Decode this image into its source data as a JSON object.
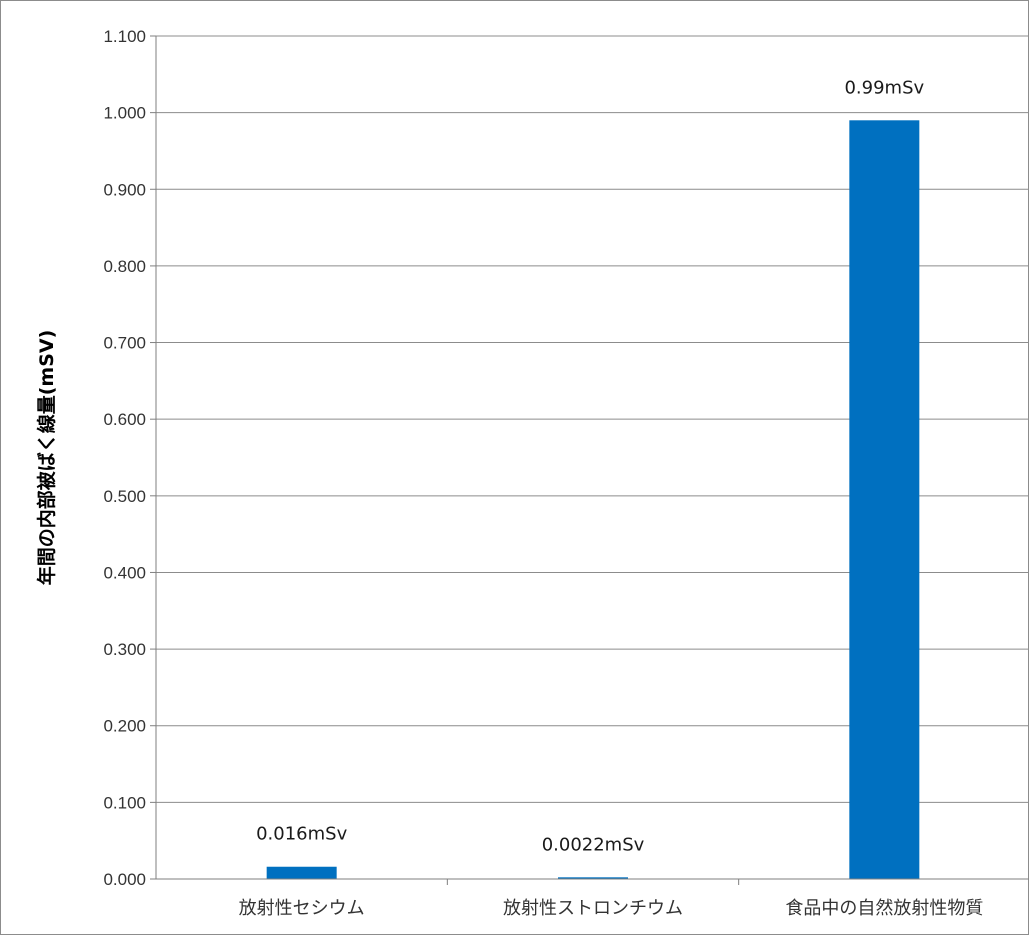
{
  "chart_data": {
    "type": "bar",
    "title": "",
    "xlabel": "",
    "ylabel": "年間の内部被ばく線量(mSV)",
    "categories": [
      "放射性セシウム",
      "放射性ストロンチウム",
      "食品中の自然放射性物質"
    ],
    "values": [
      0.016,
      0.0022,
      0.99
    ],
    "data_labels": [
      "0.016mSv",
      "0.0022mSv",
      "0.99mSv"
    ],
    "ylim": [
      0,
      1.1
    ],
    "y_ticks": [
      "0.000",
      "0.100",
      "0.200",
      "0.300",
      "0.400",
      "0.500",
      "0.600",
      "0.700",
      "0.800",
      "0.900",
      "1.000",
      "1.100"
    ],
    "grid": true,
    "legend": "none",
    "colors": {
      "bar": "#0070C0",
      "grid": "#8c8c8c",
      "axis": "#7f7f7f"
    }
  }
}
